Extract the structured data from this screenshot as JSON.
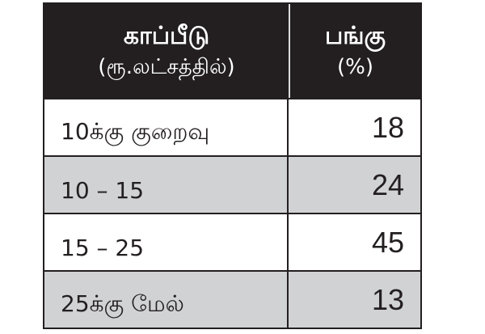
{
  "colors": {
    "header_bg": "#231f20",
    "alt_row_bg": "#d1d2d4"
  },
  "header": {
    "col1_title": "காப்பீடு",
    "col1_sub": "(ரூ.லட்சத்தில்)",
    "col2_title": "பங்கு",
    "col2_sub": "(%)"
  },
  "rows": [
    {
      "range": "10க்கு குறைவு",
      "share": "18"
    },
    {
      "range": "10 – 15",
      "share": "24"
    },
    {
      "range": "15 – 25",
      "share": "45"
    },
    {
      "range": "25க்கு மேல்",
      "share": "13"
    }
  ]
}
